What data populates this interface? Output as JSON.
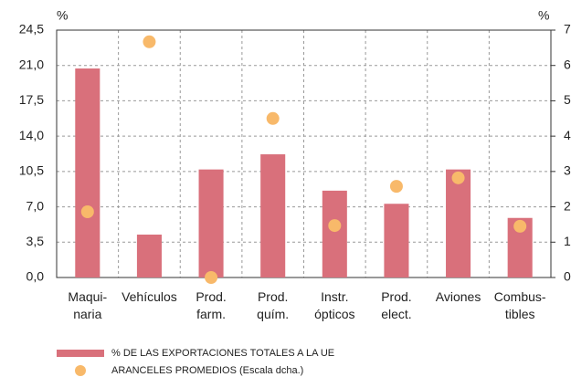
{
  "chart_data": {
    "type": "bar",
    "ylabel": "%",
    "y2label": "%",
    "categories": [
      [
        "Maqui-",
        "naria"
      ],
      [
        "Vehículos"
      ],
      [
        "Prod.",
        "farm."
      ],
      [
        "Prod.",
        "quím."
      ],
      [
        "Instr.",
        "ópticos"
      ],
      [
        "Prod.",
        "elect."
      ],
      [
        "Aviones"
      ],
      [
        "Combus-",
        "tibles"
      ]
    ],
    "series": [
      {
        "name": "% DE LAS EXPORTACIONES TOTALES A LA UE",
        "color": "#d9707b",
        "kind": "bar",
        "values": [
          20.7,
          4.25,
          10.7,
          12.2,
          8.6,
          7.3,
          10.7,
          5.9
        ]
      },
      {
        "name": "ARANCELES PROMEDIOS (Escala dcha.)",
        "color": "#f8b96a",
        "kind": "dot",
        "axis": "y2",
        "values": [
          1.86,
          6.67,
          0,
          4.5,
          1.47,
          2.58,
          2.82,
          1.45
        ]
      }
    ],
    "ylim": [
      0,
      24.5
    ],
    "yticks": [
      {
        "value": 0,
        "label": "0,0"
      },
      {
        "value": 3.5,
        "label": "3,5"
      },
      {
        "value": 7,
        "label": "7,0"
      },
      {
        "value": 10.5,
        "label": "10,5"
      },
      {
        "value": 14,
        "label": "14,0"
      },
      {
        "value": 17.5,
        "label": "17,5"
      },
      {
        "value": 21,
        "label": "21,0"
      },
      {
        "value": 24.5,
        "label": "24,5"
      }
    ],
    "y2lim": [
      0,
      7
    ],
    "y2ticks": [
      0,
      1,
      2,
      3,
      4,
      5,
      6,
      7
    ],
    "grid": true
  }
}
